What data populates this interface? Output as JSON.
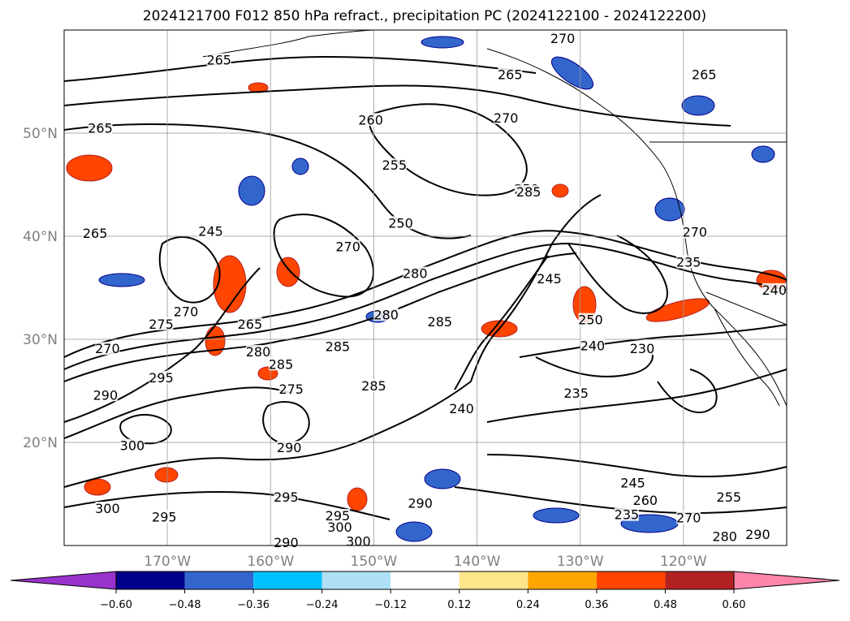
{
  "chart_data": {
    "type": "contour-map",
    "title": "2024121700 F012 850 hPa refract., precipitation PC (2024122100 - 2024122200)",
    "map": {
      "lon_range": [
        -180,
        -110
      ],
      "lat_range": [
        10,
        60
      ],
      "lat_ticks": [
        {
          "value": 20,
          "label": "20°N"
        },
        {
          "value": 30,
          "label": "30°N"
        },
        {
          "value": 40,
          "label": "40°N"
        },
        {
          "value": 50,
          "label": "50°N"
        }
      ],
      "lon_ticks": [
        {
          "value": -170,
          "label": "170°W"
        },
        {
          "value": -160,
          "label": "160°W"
        },
        {
          "value": -150,
          "label": "150°W"
        },
        {
          "value": -140,
          "label": "140°W"
        },
        {
          "value": -130,
          "label": "130°W"
        },
        {
          "value": -120,
          "label": "120°W"
        }
      ],
      "grid": true,
      "gridlines_lon": [
        -170,
        -160,
        -150,
        -140,
        -130,
        -120
      ],
      "gridlines_lat": [
        20,
        30,
        40,
        50
      ]
    },
    "colorbar": {
      "orientation": "horizontal",
      "extend": "both",
      "boundaries": [
        -0.6,
        -0.48,
        -0.36,
        -0.24,
        -0.12,
        0.12,
        0.24,
        0.36,
        0.48,
        0.6
      ],
      "tick_labels": [
        "−0.60",
        "−0.48",
        "−0.36",
        "−0.24",
        "−0.12",
        "0.12",
        "0.24",
        "0.36",
        "0.48",
        "0.60"
      ],
      "colors": [
        "#9932cc",
        "#00008b",
        "#3366cc",
        "#00bfff",
        "#b0e0f6",
        "#ffffff",
        "#ffe58a",
        "#ffa500",
        "#ff4500",
        "#b22222",
        "#ff85aa"
      ]
    },
    "contour_labels": [
      {
        "text": "265",
        "lon": -176.5,
        "lat": 50.2
      },
      {
        "text": "265",
        "lon": -165.0,
        "lat": 56.8
      },
      {
        "text": "265",
        "lon": -177.0,
        "lat": 40.0
      },
      {
        "text": "265",
        "lon": -162.0,
        "lat": 31.2
      },
      {
        "text": "265",
        "lon": -136.8,
        "lat": 55.4
      },
      {
        "text": "265",
        "lon": -118.0,
        "lat": 55.4
      },
      {
        "text": "260",
        "lon": -150.3,
        "lat": 51.0
      },
      {
        "text": "255",
        "lon": -148.0,
        "lat": 46.6
      },
      {
        "text": "250",
        "lon": -147.4,
        "lat": 41.0
      },
      {
        "text": "250",
        "lon": -135.2,
        "lat": 44.3
      },
      {
        "text": "250",
        "lon": -129.0,
        "lat": 31.6
      },
      {
        "text": "245",
        "lon": -165.8,
        "lat": 40.2
      },
      {
        "text": "245",
        "lon": -133.0,
        "lat": 35.6
      },
      {
        "text": "240",
        "lon": -141.5,
        "lat": 23.0
      },
      {
        "text": "235",
        "lon": -130.4,
        "lat": 24.5
      },
      {
        "text": "235",
        "lon": -125.5,
        "lat": 12.7
      },
      {
        "text": "235",
        "lon": -119.5,
        "lat": 37.2
      },
      {
        "text": "230",
        "lon": -124.0,
        "lat": 28.8
      },
      {
        "text": "270",
        "lon": -131.7,
        "lat": 58.9
      },
      {
        "text": "270",
        "lon": -137.2,
        "lat": 51.2
      },
      {
        "text": "270",
        "lon": -152.5,
        "lat": 38.7
      },
      {
        "text": "270",
        "lon": -168.2,
        "lat": 32.4
      },
      {
        "text": "270",
        "lon": -175.8,
        "lat": 28.8
      },
      {
        "text": "270",
        "lon": -118.9,
        "lat": 40.1
      },
      {
        "text": "270",
        "lon": -119.5,
        "lat": 12.4
      },
      {
        "text": "275",
        "lon": -158.0,
        "lat": 24.9
      },
      {
        "text": "275",
        "lon": -170.6,
        "lat": 31.2
      },
      {
        "text": "280",
        "lon": -146.0,
        "lat": 36.1
      },
      {
        "text": "280",
        "lon": -148.8,
        "lat": 32.1
      },
      {
        "text": "280",
        "lon": -161.2,
        "lat": 28.5
      },
      {
        "text": "280",
        "lon": -116.0,
        "lat": 10.6
      },
      {
        "text": "285",
        "lon": -153.5,
        "lat": 29.0
      },
      {
        "text": "285",
        "lon": -159.0,
        "lat": 27.3
      },
      {
        "text": "285",
        "lon": -150.0,
        "lat": 25.2
      },
      {
        "text": "285",
        "lon": -135.0,
        "lat": 44.0
      },
      {
        "text": "285",
        "lon": -143.6,
        "lat": 31.4
      },
      {
        "text": "290",
        "lon": -158.2,
        "lat": 19.2
      },
      {
        "text": "290",
        "lon": -176.0,
        "lat": 24.3
      },
      {
        "text": "290",
        "lon": -158.5,
        "lat": 10.0
      },
      {
        "text": "290",
        "lon": -145.5,
        "lat": 13.8
      },
      {
        "text": "290",
        "lon": -112.8,
        "lat": 10.8
      },
      {
        "text": "295",
        "lon": -170.6,
        "lat": 26.0
      },
      {
        "text": "295",
        "lon": -158.5,
        "lat": 14.4
      },
      {
        "text": "295",
        "lon": -153.5,
        "lat": 12.6
      },
      {
        "text": "295",
        "lon": -170.3,
        "lat": 12.5
      },
      {
        "text": "300",
        "lon": -153.3,
        "lat": 11.5
      },
      {
        "text": "300",
        "lon": -175.8,
        "lat": 13.3
      },
      {
        "text": "300",
        "lon": -173.4,
        "lat": 19.4
      },
      {
        "text": "300",
        "lon": -151.5,
        "lat": 10.1
      },
      {
        "text": "255",
        "lon": -115.6,
        "lat": 14.4
      },
      {
        "text": "260",
        "lon": -123.7,
        "lat": 14.1
      },
      {
        "text": "240",
        "lon": -128.8,
        "lat": 29.1
      },
      {
        "text": "240",
        "lon": -111.2,
        "lat": 34.5
      },
      {
        "text": "245",
        "lon": -124.9,
        "lat": 15.8
      }
    ]
  }
}
